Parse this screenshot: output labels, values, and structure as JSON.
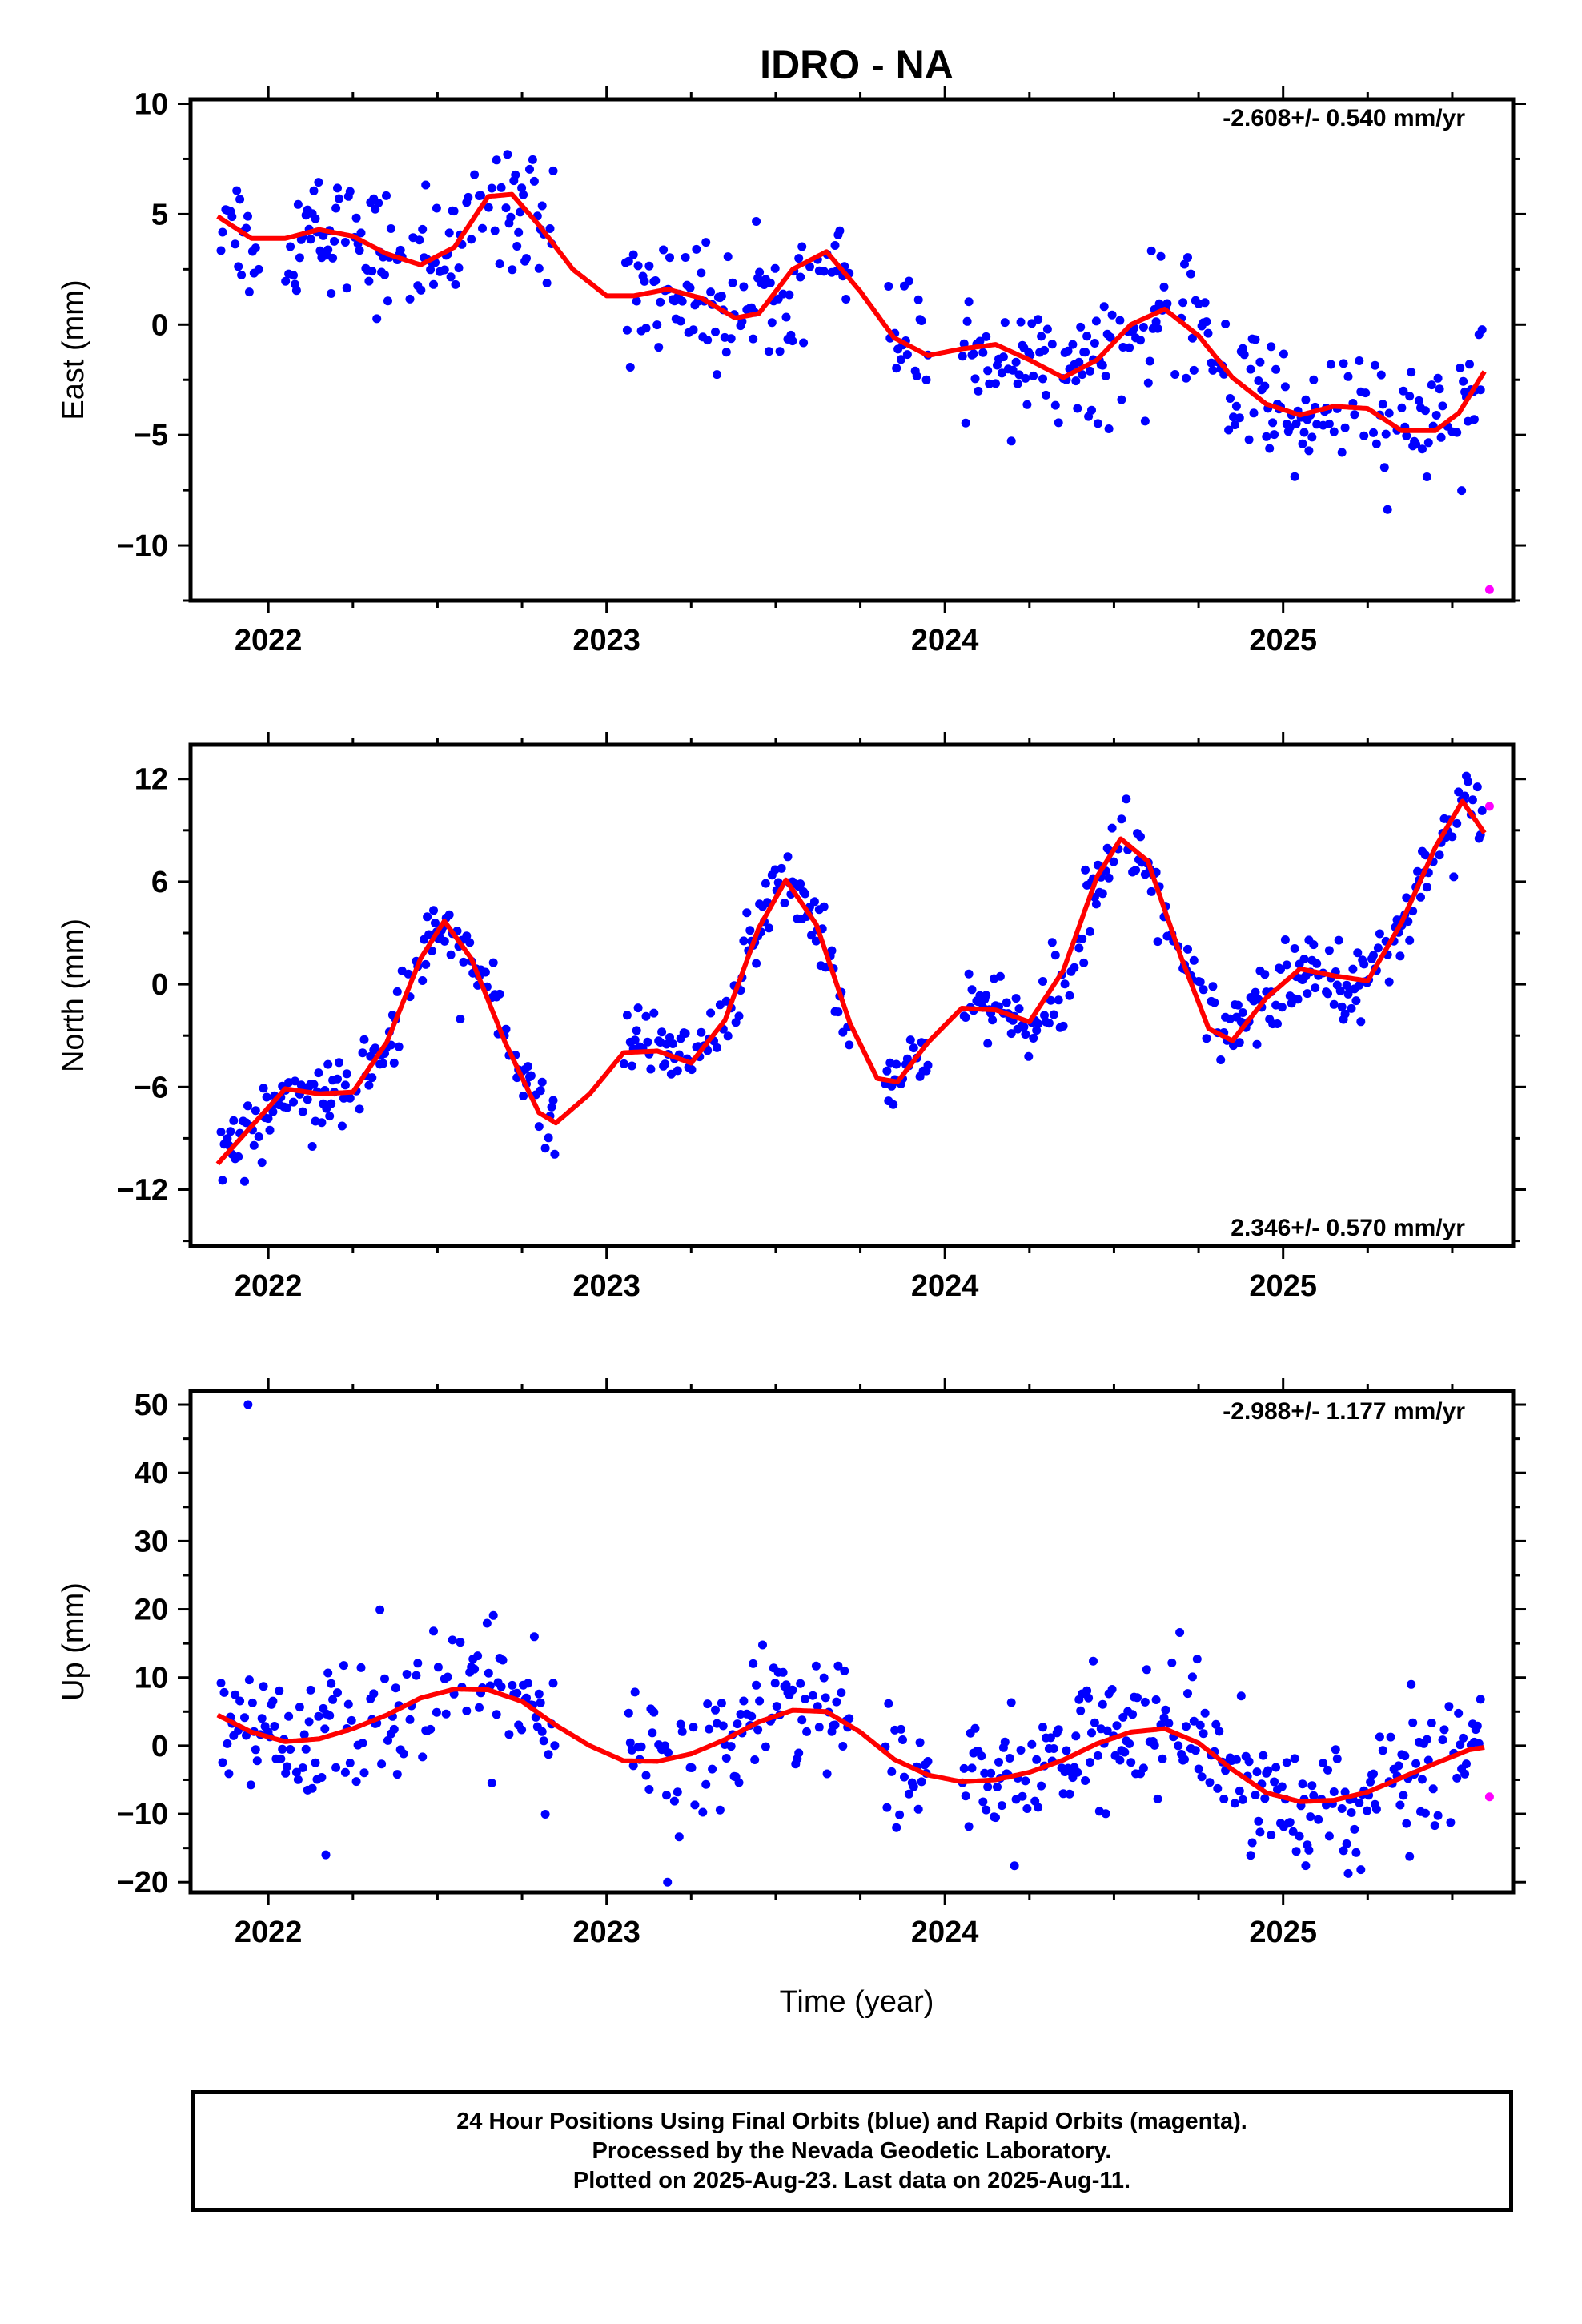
{
  "title": "IDRO - NA",
  "xlabel": "Time (year)",
  "colors": {
    "final": "#0000ff",
    "rapid": "#ff00ff",
    "model": "#ff0000",
    "frame": "#000000"
  },
  "caption": {
    "line1": "24 Hour Positions Using Final Orbits (blue) and Rapid Orbits (magenta).",
    "line2": "Processed by the Nevada Geodetic Laboratory.",
    "line3": "Plotted on 2025-Aug-23. Last data on 2025-Aug-11."
  },
  "chart_data": [
    {
      "type": "scatter",
      "name": "east",
      "ylabel": "East (mm)",
      "rate_text": "-2.608+/- 0.540 mm/yr",
      "xlim": [
        2021.77,
        2025.68
      ],
      "ylim": [
        -12.5,
        10.2
      ],
      "xticks": [
        2022,
        2023,
        2024,
        2025
      ],
      "xtick_labels": [
        "2022",
        "2023",
        "2024",
        "2025"
      ],
      "yticks": [
        10,
        5,
        0,
        -5,
        -10
      ],
      "ytick_labels": [
        "10",
        "5",
        "0",
        "−5",
        "−10"
      ],
      "model_curve": [
        [
          2021.85,
          4.9
        ],
        [
          2021.95,
          3.9
        ],
        [
          2022.05,
          3.9
        ],
        [
          2022.15,
          4.3
        ],
        [
          2022.25,
          4.0
        ],
        [
          2022.35,
          3.2
        ],
        [
          2022.45,
          2.7
        ],
        [
          2022.55,
          3.5
        ],
        [
          2022.65,
          5.8
        ],
        [
          2022.72,
          5.9
        ],
        [
          2022.8,
          4.5
        ],
        [
          2022.9,
          2.5
        ],
        [
          2023.0,
          1.3
        ],
        [
          2023.08,
          1.3
        ],
        [
          2023.18,
          1.6
        ],
        [
          2023.28,
          1.2
        ],
        [
          2023.38,
          0.3
        ],
        [
          2023.45,
          0.5
        ],
        [
          2023.55,
          2.5
        ],
        [
          2023.65,
          3.3
        ],
        [
          2023.75,
          1.5
        ],
        [
          2023.85,
          -0.6
        ],
        [
          2023.95,
          -1.4
        ],
        [
          2024.05,
          -1.1
        ],
        [
          2024.15,
          -0.9
        ],
        [
          2024.25,
          -1.6
        ],
        [
          2024.35,
          -2.4
        ],
        [
          2024.45,
          -1.6
        ],
        [
          2024.55,
          0.0
        ],
        [
          2024.65,
          0.7
        ],
        [
          2024.75,
          -0.5
        ],
        [
          2024.85,
          -2.4
        ],
        [
          2024.95,
          -3.6
        ],
        [
          2025.05,
          -4.1
        ],
        [
          2025.15,
          -3.7
        ],
        [
          2025.25,
          -3.8
        ],
        [
          2025.35,
          -4.8
        ],
        [
          2025.45,
          -4.8
        ],
        [
          2025.52,
          -4.0
        ],
        [
          2025.6,
          -2.0
        ]
      ],
      "series": [
        {
          "name": "final",
          "trend": [
            2021.85,
            3.4,
            2022.9,
            1.0,
            2023.0,
            0.7,
            2024.0,
            -1.6,
            2025.0,
            -4.1,
            2025.6,
            -5.2
          ],
          "scatter": 1.4,
          "gaps": [
            [
              2021.98,
              2022.05
            ],
            [
              2022.85,
              2023.05
            ],
            [
              2023.72,
              2023.82
            ],
            [
              2023.95,
              2024.05
            ]
          ]
        },
        {
          "name": "rapid",
          "x": [
            2025.61
          ],
          "y": [
            -12.0
          ]
        }
      ]
    },
    {
      "type": "scatter",
      "name": "north",
      "ylabel": "North (mm)",
      "rate_text": "2.346+/- 0.570 mm/yr",
      "xlim": [
        2021.77,
        2025.68
      ],
      "ylim": [
        -15.3,
        14.0
      ],
      "xticks": [
        2022,
        2023,
        2024,
        2025
      ],
      "xtick_labels": [
        "2022",
        "2023",
        "2024",
        "2025"
      ],
      "yticks": [
        12,
        6,
        0,
        -6,
        -12
      ],
      "ytick_labels": [
        "12",
        "6",
        "0",
        "−6",
        "−12"
      ],
      "model_curve": [
        [
          2021.85,
          -10.5
        ],
        [
          2021.95,
          -8.3
        ],
        [
          2022.05,
          -6.1
        ],
        [
          2022.15,
          -6.4
        ],
        [
          2022.25,
          -6.3
        ],
        [
          2022.35,
          -3.4
        ],
        [
          2022.45,
          1.5
        ],
        [
          2022.52,
          3.7
        ],
        [
          2022.6,
          1.5
        ],
        [
          2022.7,
          -3.4
        ],
        [
          2022.8,
          -7.5
        ],
        [
          2022.85,
          -8.1
        ],
        [
          2022.95,
          -6.4
        ],
        [
          2023.05,
          -4.0
        ],
        [
          2023.15,
          -3.9
        ],
        [
          2023.25,
          -4.6
        ],
        [
          2023.35,
          -2.1
        ],
        [
          2023.45,
          3.3
        ],
        [
          2023.53,
          6.1
        ],
        [
          2023.62,
          3.5
        ],
        [
          2023.72,
          -2.3
        ],
        [
          2023.8,
          -5.5
        ],
        [
          2023.86,
          -5.7
        ],
        [
          2023.95,
          -3.4
        ],
        [
          2024.05,
          -1.4
        ],
        [
          2024.15,
          -1.5
        ],
        [
          2024.25,
          -2.2
        ],
        [
          2024.35,
          0.8
        ],
        [
          2024.45,
          6.3
        ],
        [
          2024.52,
          8.5
        ],
        [
          2024.6,
          7.2
        ],
        [
          2024.7,
          1.5
        ],
        [
          2024.78,
          -2.6
        ],
        [
          2024.85,
          -3.3
        ],
        [
          2024.95,
          -0.8
        ],
        [
          2025.05,
          0.9
        ],
        [
          2025.15,
          0.5
        ],
        [
          2025.25,
          0.2
        ],
        [
          2025.35,
          3.6
        ],
        [
          2025.45,
          8.0
        ],
        [
          2025.53,
          10.7
        ],
        [
          2025.6,
          8.7
        ]
      ],
      "series": [
        {
          "name": "final",
          "trend": [
            2021.85,
            -10.3,
            2025.6,
            9.6
          ],
          "scatter": 1.1,
          "gaps": [
            [
              2022.85,
              2023.05
            ],
            [
              2023.72,
              2023.82
            ],
            [
              2023.95,
              2024.05
            ]
          ]
        },
        {
          "name": "rapid",
          "x": [
            2025.61
          ],
          "y": [
            10.4
          ]
        }
      ]
    },
    {
      "type": "scatter",
      "name": "up",
      "ylabel": "Up (mm)",
      "rate_text": "-2.988+/- 1.177 mm/yr",
      "xlim": [
        2021.77,
        2025.68
      ],
      "ylim": [
        -21.5,
        52
      ],
      "xticks": [
        2022,
        2023,
        2024,
        2025
      ],
      "xtick_labels": [
        "2022",
        "2023",
        "2024",
        "2025"
      ],
      "yticks": [
        50,
        40,
        30,
        20,
        10,
        0,
        -10,
        -20
      ],
      "ytick_labels": [
        "50",
        "40",
        "30",
        "20",
        "10",
        "0",
        "−10",
        "−20"
      ],
      "model_curve": [
        [
          2021.85,
          4.5
        ],
        [
          2021.95,
          2.0
        ],
        [
          2022.05,
          0.6
        ],
        [
          2022.15,
          1.0
        ],
        [
          2022.25,
          2.5
        ],
        [
          2022.35,
          4.5
        ],
        [
          2022.45,
          7.0
        ],
        [
          2022.55,
          8.3
        ],
        [
          2022.65,
          8.2
        ],
        [
          2022.75,
          6.5
        ],
        [
          2022.85,
          3.0
        ],
        [
          2022.95,
          0.0
        ],
        [
          2023.05,
          -2.2
        ],
        [
          2023.15,
          -2.3
        ],
        [
          2023.25,
          -1.2
        ],
        [
          2023.35,
          0.9
        ],
        [
          2023.45,
          3.5
        ],
        [
          2023.55,
          5.2
        ],
        [
          2023.65,
          5.0
        ],
        [
          2023.75,
          2.0
        ],
        [
          2023.85,
          -2.0
        ],
        [
          2023.95,
          -4.3
        ],
        [
          2024.05,
          -5.3
        ],
        [
          2024.15,
          -5.0
        ],
        [
          2024.25,
          -3.9
        ],
        [
          2024.35,
          -2.1
        ],
        [
          2024.45,
          0.3
        ],
        [
          2024.55,
          2.0
        ],
        [
          2024.65,
          2.5
        ],
        [
          2024.75,
          0.4
        ],
        [
          2024.85,
          -3.5
        ],
        [
          2024.95,
          -6.9
        ],
        [
          2025.05,
          -8.2
        ],
        [
          2025.15,
          -8.0
        ],
        [
          2025.25,
          -6.8
        ],
        [
          2025.35,
          -4.7
        ],
        [
          2025.45,
          -2.6
        ],
        [
          2025.55,
          -0.6
        ],
        [
          2025.6,
          -0.2
        ]
      ],
      "series": [
        {
          "name": "final",
          "trend": [
            2021.85,
            0.5,
            2025.6,
            -2.0
          ],
          "scatter": 4.5,
          "gaps": [
            [
              2022.85,
              2023.05
            ],
            [
              2023.72,
              2023.82
            ],
            [
              2023.95,
              2024.05
            ]
          ]
        },
        {
          "name": "rapid",
          "x": [
            2025.61
          ],
          "y": [
            -7.5
          ]
        },
        {
          "name": "final-outliers",
          "x": [
            2021.94,
            2022.17,
            2023.18
          ],
          "y": [
            50,
            -16,
            -20
          ]
        }
      ]
    }
  ]
}
